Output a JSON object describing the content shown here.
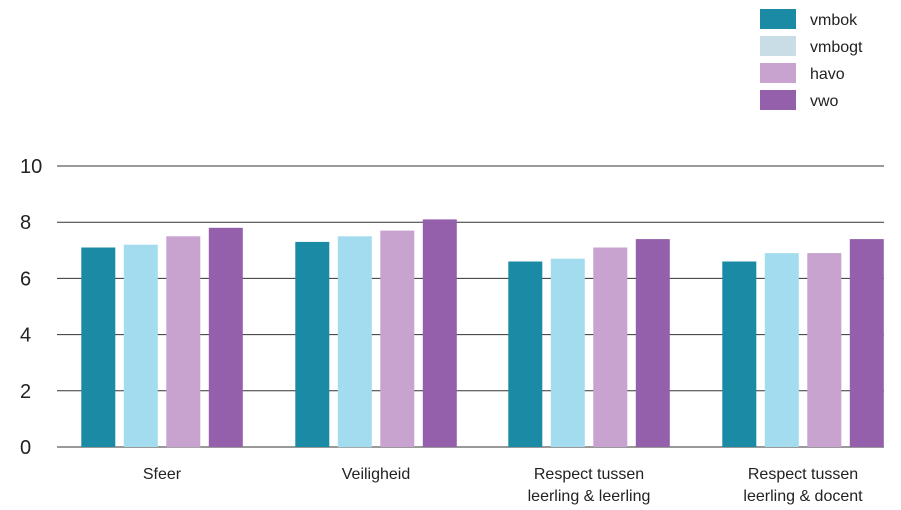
{
  "chart_data": {
    "type": "bar",
    "title": "",
    "xlabel": "",
    "ylabel": "",
    "ylim": [
      0,
      10
    ],
    "yticks": [
      0,
      2,
      4,
      6,
      8,
      10
    ],
    "grid": true,
    "legend_position": "top-right",
    "categories": [
      [
        "Sfeer"
      ],
      [
        "Veiligheid"
      ],
      [
        "Respect tussen",
        "leerling & leerling"
      ],
      [
        "Respect tussen",
        "leerling & docent"
      ]
    ],
    "series": [
      {
        "name": "vmbok",
        "color": "#1a8aa5",
        "values": [
          7.1,
          7.3,
          6.6,
          6.6
        ]
      },
      {
        "name": "vmbogt",
        "color": "#a3dcee",
        "values": [
          7.2,
          7.5,
          6.7,
          6.9
        ]
      },
      {
        "name": "havo",
        "color": "#c8a3cf",
        "values": [
          7.5,
          7.7,
          7.1,
          6.9
        ]
      },
      {
        "name": "vwo",
        "color": "#9460ab",
        "values": [
          7.8,
          8.1,
          7.4,
          7.4
        ]
      }
    ],
    "legend_swatch_colors": [
      "#1a8aa5",
      "#c9dde6",
      "#c8a3cf",
      "#9460ab"
    ]
  }
}
